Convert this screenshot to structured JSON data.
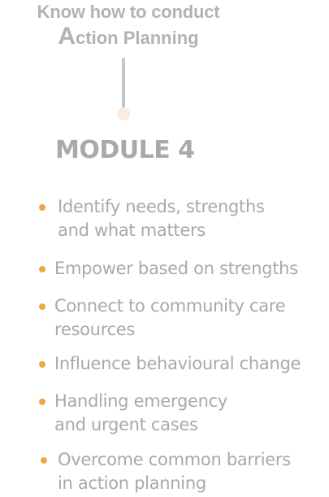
{
  "heading": {
    "line1": "Know how to conduct",
    "line2_first_letter": "A",
    "line2_rest": "ction Planning"
  },
  "module": {
    "title": "MODULE 4"
  },
  "colors": {
    "text_gray": "#a9a9a9",
    "bullet_orange": "#f2a642",
    "connector_gray": "#c6c6c6",
    "connector_dot": "#f8ebe0"
  },
  "items": [
    {
      "line1": "Identify needs, strengths",
      "line2": "and what matters"
    },
    {
      "line1": "Empower based on strengths",
      "line2": ""
    },
    {
      "line1": "Connect to community care",
      "line2": "resources"
    },
    {
      "line1": "Influence behavioural change",
      "line2": ""
    },
    {
      "line1": "Handling emergency",
      "line2": "and urgent cases"
    },
    {
      "line1": "Overcome common barriers",
      "line2": "in action planning"
    }
  ]
}
